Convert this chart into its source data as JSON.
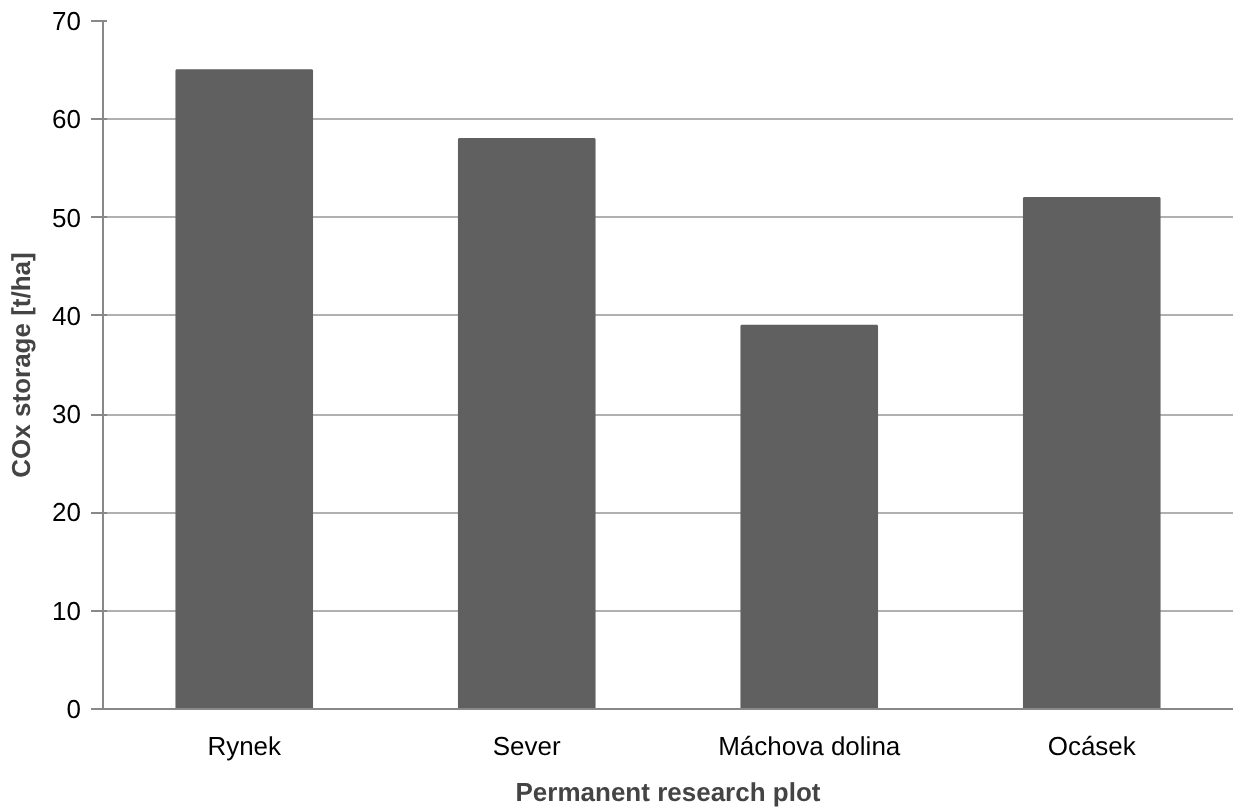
{
  "chart_data": {
    "type": "bar",
    "xlabel": "Permanent research plot",
    "ylabel": "COx storage [t/ha]",
    "categories": [
      "Rynek",
      "Sever",
      "Máchova dolina",
      "Ocásek"
    ],
    "values": [
      65,
      58,
      39,
      52
    ],
    "color": "#606060",
    "ylim": [
      0,
      70
    ],
    "yticks": [
      0,
      10,
      20,
      30,
      40,
      50,
      60,
      70
    ],
    "grid": "y"
  }
}
